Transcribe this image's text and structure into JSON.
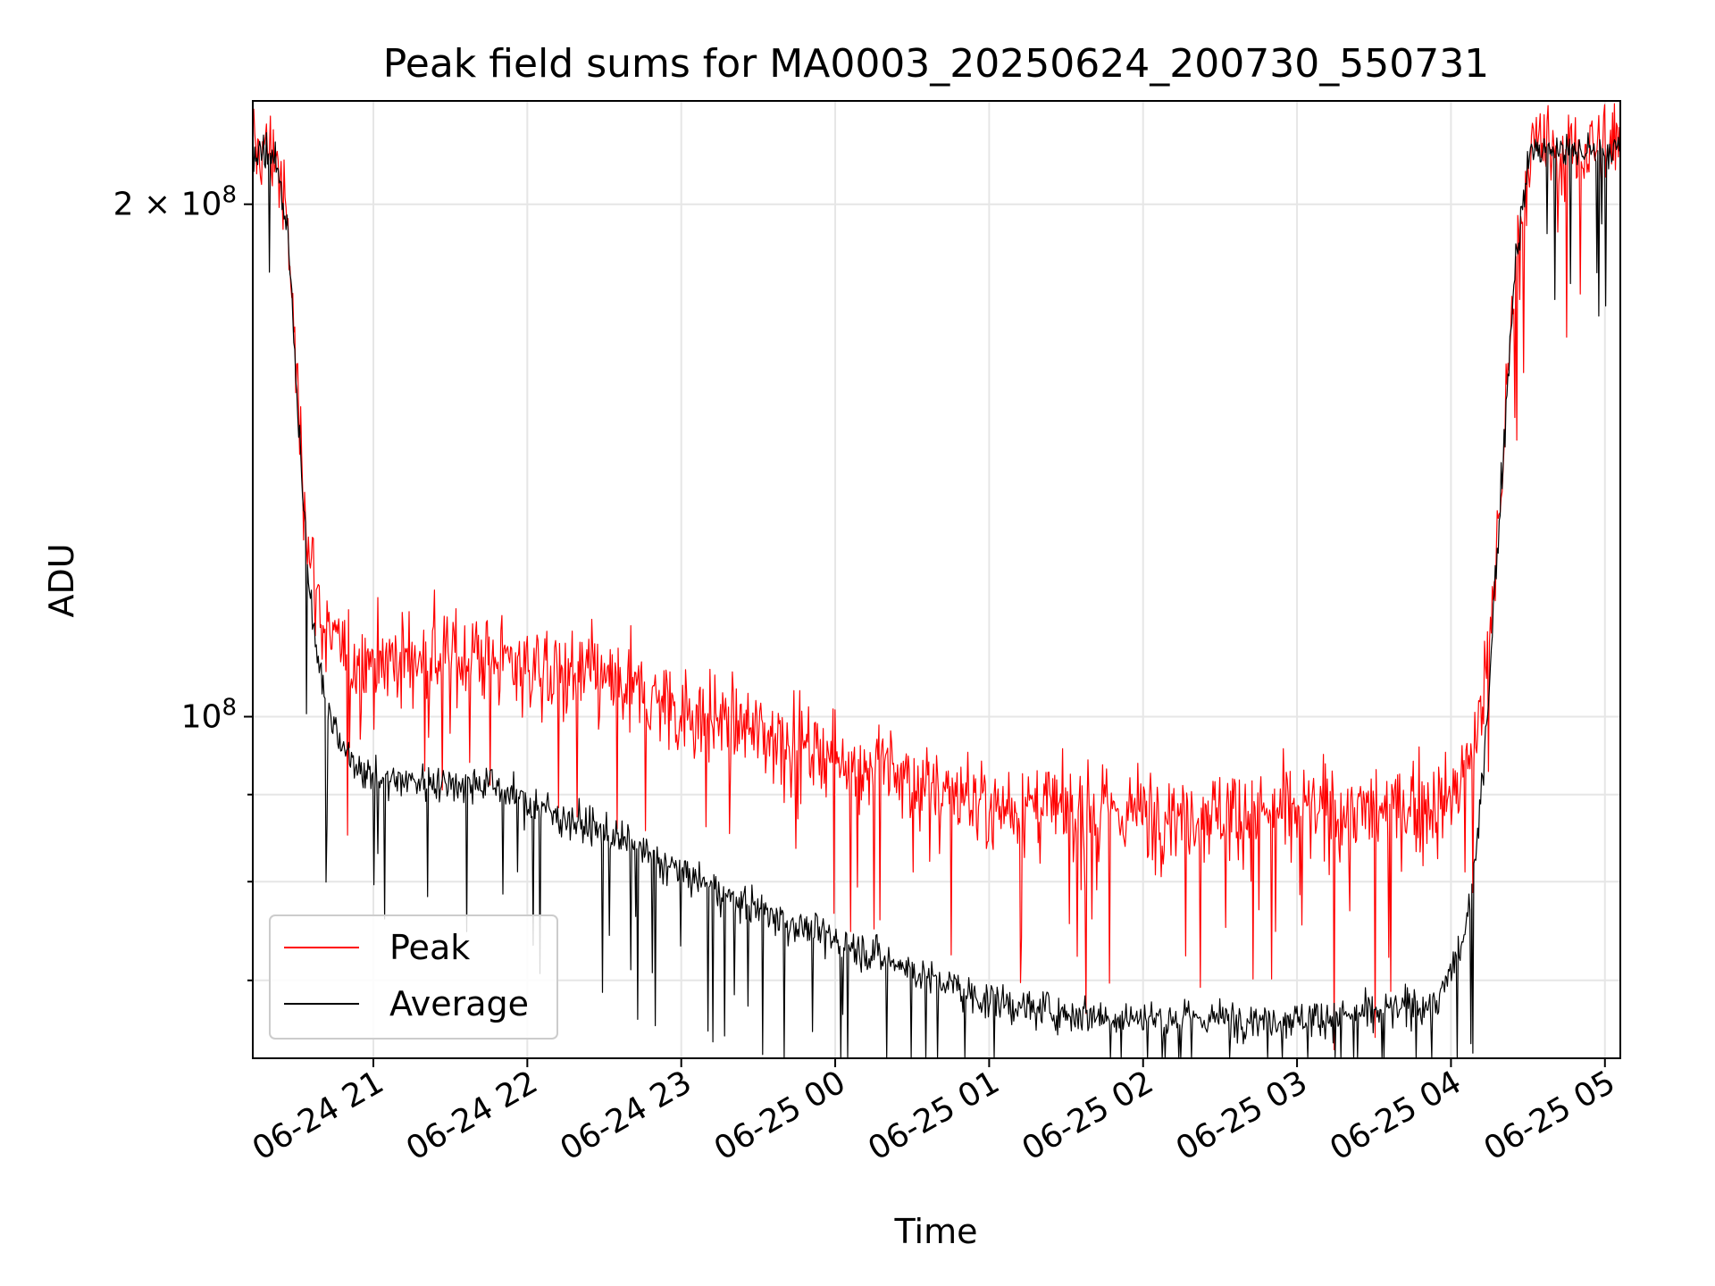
{
  "chart_data": {
    "type": "line",
    "title": "Peak field sums for MA0003_20250624_200730_550731",
    "xlabel": "Time",
    "ylabel": "ADU",
    "y_scale": "log",
    "ylim": [
      63000000,
      230000000
    ],
    "xlim": [
      "2025-06-24 20:13",
      "2025-06-25 05:06"
    ],
    "x_ticks": [
      {
        "time": "2025-06-24 21:00",
        "label": "06-24 21"
      },
      {
        "time": "2025-06-24 22:00",
        "label": "06-24 22"
      },
      {
        "time": "2025-06-24 23:00",
        "label": "06-24 23"
      },
      {
        "time": "2025-06-25 00:00",
        "label": "06-25 00"
      },
      {
        "time": "2025-06-25 01:00",
        "label": "06-25 01"
      },
      {
        "time": "2025-06-25 02:00",
        "label": "06-25 02"
      },
      {
        "time": "2025-06-25 03:00",
        "label": "06-25 03"
      },
      {
        "time": "2025-06-25 04:00",
        "label": "06-25 04"
      },
      {
        "time": "2025-06-25 05:00",
        "label": "06-25 05"
      }
    ],
    "y_major_ticks": [
      {
        "value": 100000000,
        "base": "10",
        "exp": "8",
        "coef": ""
      },
      {
        "value": 200000000,
        "base": "10",
        "exp": "8",
        "coef": "2 × "
      }
    ],
    "y_minor_ticks": [
      70000000,
      80000000,
      90000000
    ],
    "grid": true,
    "legend_position": "lower left",
    "series": [
      {
        "name": "Peak",
        "color": "#ff0000",
        "noise_fraction": 0.045,
        "points": [
          {
            "time": "2025-06-24 20:13",
            "value": 215000000
          },
          {
            "time": "2025-06-24 20:22",
            "value": 215000000
          },
          {
            "time": "2025-06-24 20:27",
            "value": 190000000
          },
          {
            "time": "2025-06-24 20:31",
            "value": 150000000
          },
          {
            "time": "2025-06-24 20:35",
            "value": 125000000
          },
          {
            "time": "2025-06-24 20:41",
            "value": 112000000
          },
          {
            "time": "2025-06-24 20:50",
            "value": 108000000
          },
          {
            "time": "2025-06-24 21:15",
            "value": 108000000
          },
          {
            "time": "2025-06-24 21:40",
            "value": 109000000
          },
          {
            "time": "2025-06-24 22:00",
            "value": 107000000
          },
          {
            "time": "2025-06-24 22:30",
            "value": 105000000
          },
          {
            "time": "2025-06-24 23:00",
            "value": 101000000
          },
          {
            "time": "2025-06-24 23:30",
            "value": 98000000
          },
          {
            "time": "2025-06-25 00:00",
            "value": 95000000
          },
          {
            "time": "2025-06-25 00:30",
            "value": 92000000
          },
          {
            "time": "2025-06-25 01:00",
            "value": 89000000
          },
          {
            "time": "2025-06-25 01:30",
            "value": 88000000
          },
          {
            "time": "2025-06-25 02:00",
            "value": 88000000
          },
          {
            "time": "2025-06-25 02:30",
            "value": 88000000
          },
          {
            "time": "2025-06-25 03:00",
            "value": 88000000
          },
          {
            "time": "2025-06-25 03:30",
            "value": 88000000
          },
          {
            "time": "2025-06-25 04:00",
            "value": 89000000
          },
          {
            "time": "2025-06-25 04:10",
            "value": 97000000
          },
          {
            "time": "2025-06-25 04:15",
            "value": 110000000
          },
          {
            "time": "2025-06-25 04:20",
            "value": 140000000
          },
          {
            "time": "2025-06-25 04:25",
            "value": 185000000
          },
          {
            "time": "2025-06-25 04:31",
            "value": 215000000
          },
          {
            "time": "2025-06-25 05:06",
            "value": 215000000
          }
        ]
      },
      {
        "name": "Average",
        "color": "#000000",
        "noise_fraction": 0.018,
        "points": [
          {
            "time": "2025-06-24 20:13",
            "value": 215000000
          },
          {
            "time": "2025-06-24 20:22",
            "value": 215000000
          },
          {
            "time": "2025-06-24 20:27",
            "value": 190000000
          },
          {
            "time": "2025-06-24 20:31",
            "value": 148000000
          },
          {
            "time": "2025-06-24 20:35",
            "value": 118000000
          },
          {
            "time": "2025-06-24 20:40",
            "value": 104000000
          },
          {
            "time": "2025-06-24 20:47",
            "value": 96000000
          },
          {
            "time": "2025-06-24 21:00",
            "value": 92000000
          },
          {
            "time": "2025-06-24 21:30",
            "value": 91500000
          },
          {
            "time": "2025-06-24 21:45",
            "value": 91500000
          },
          {
            "time": "2025-06-24 22:00",
            "value": 89000000
          },
          {
            "time": "2025-06-24 22:30",
            "value": 85500000
          },
          {
            "time": "2025-06-24 23:00",
            "value": 81000000
          },
          {
            "time": "2025-06-24 23:30",
            "value": 77000000
          },
          {
            "time": "2025-06-25 00:00",
            "value": 74000000
          },
          {
            "time": "2025-06-25 00:30",
            "value": 71000000
          },
          {
            "time": "2025-06-25 01:00",
            "value": 68000000
          },
          {
            "time": "2025-06-25 01:30",
            "value": 67000000
          },
          {
            "time": "2025-06-25 02:00",
            "value": 66500000
          },
          {
            "time": "2025-06-25 02:30",
            "value": 66500000
          },
          {
            "time": "2025-06-25 03:00",
            "value": 66500000
          },
          {
            "time": "2025-06-25 03:30",
            "value": 67000000
          },
          {
            "time": "2025-06-25 03:55",
            "value": 68000000
          },
          {
            "time": "2025-06-25 04:05",
            "value": 74000000
          },
          {
            "time": "2025-06-25 04:10",
            "value": 83000000
          },
          {
            "time": "2025-06-25 04:15",
            "value": 105000000
          },
          {
            "time": "2025-06-25 04:20",
            "value": 140000000
          },
          {
            "time": "2025-06-25 04:25",
            "value": 185000000
          },
          {
            "time": "2025-06-25 04:31",
            "value": 215000000
          },
          {
            "time": "2025-06-25 05:06",
            "value": 215000000
          }
        ]
      }
    ]
  }
}
